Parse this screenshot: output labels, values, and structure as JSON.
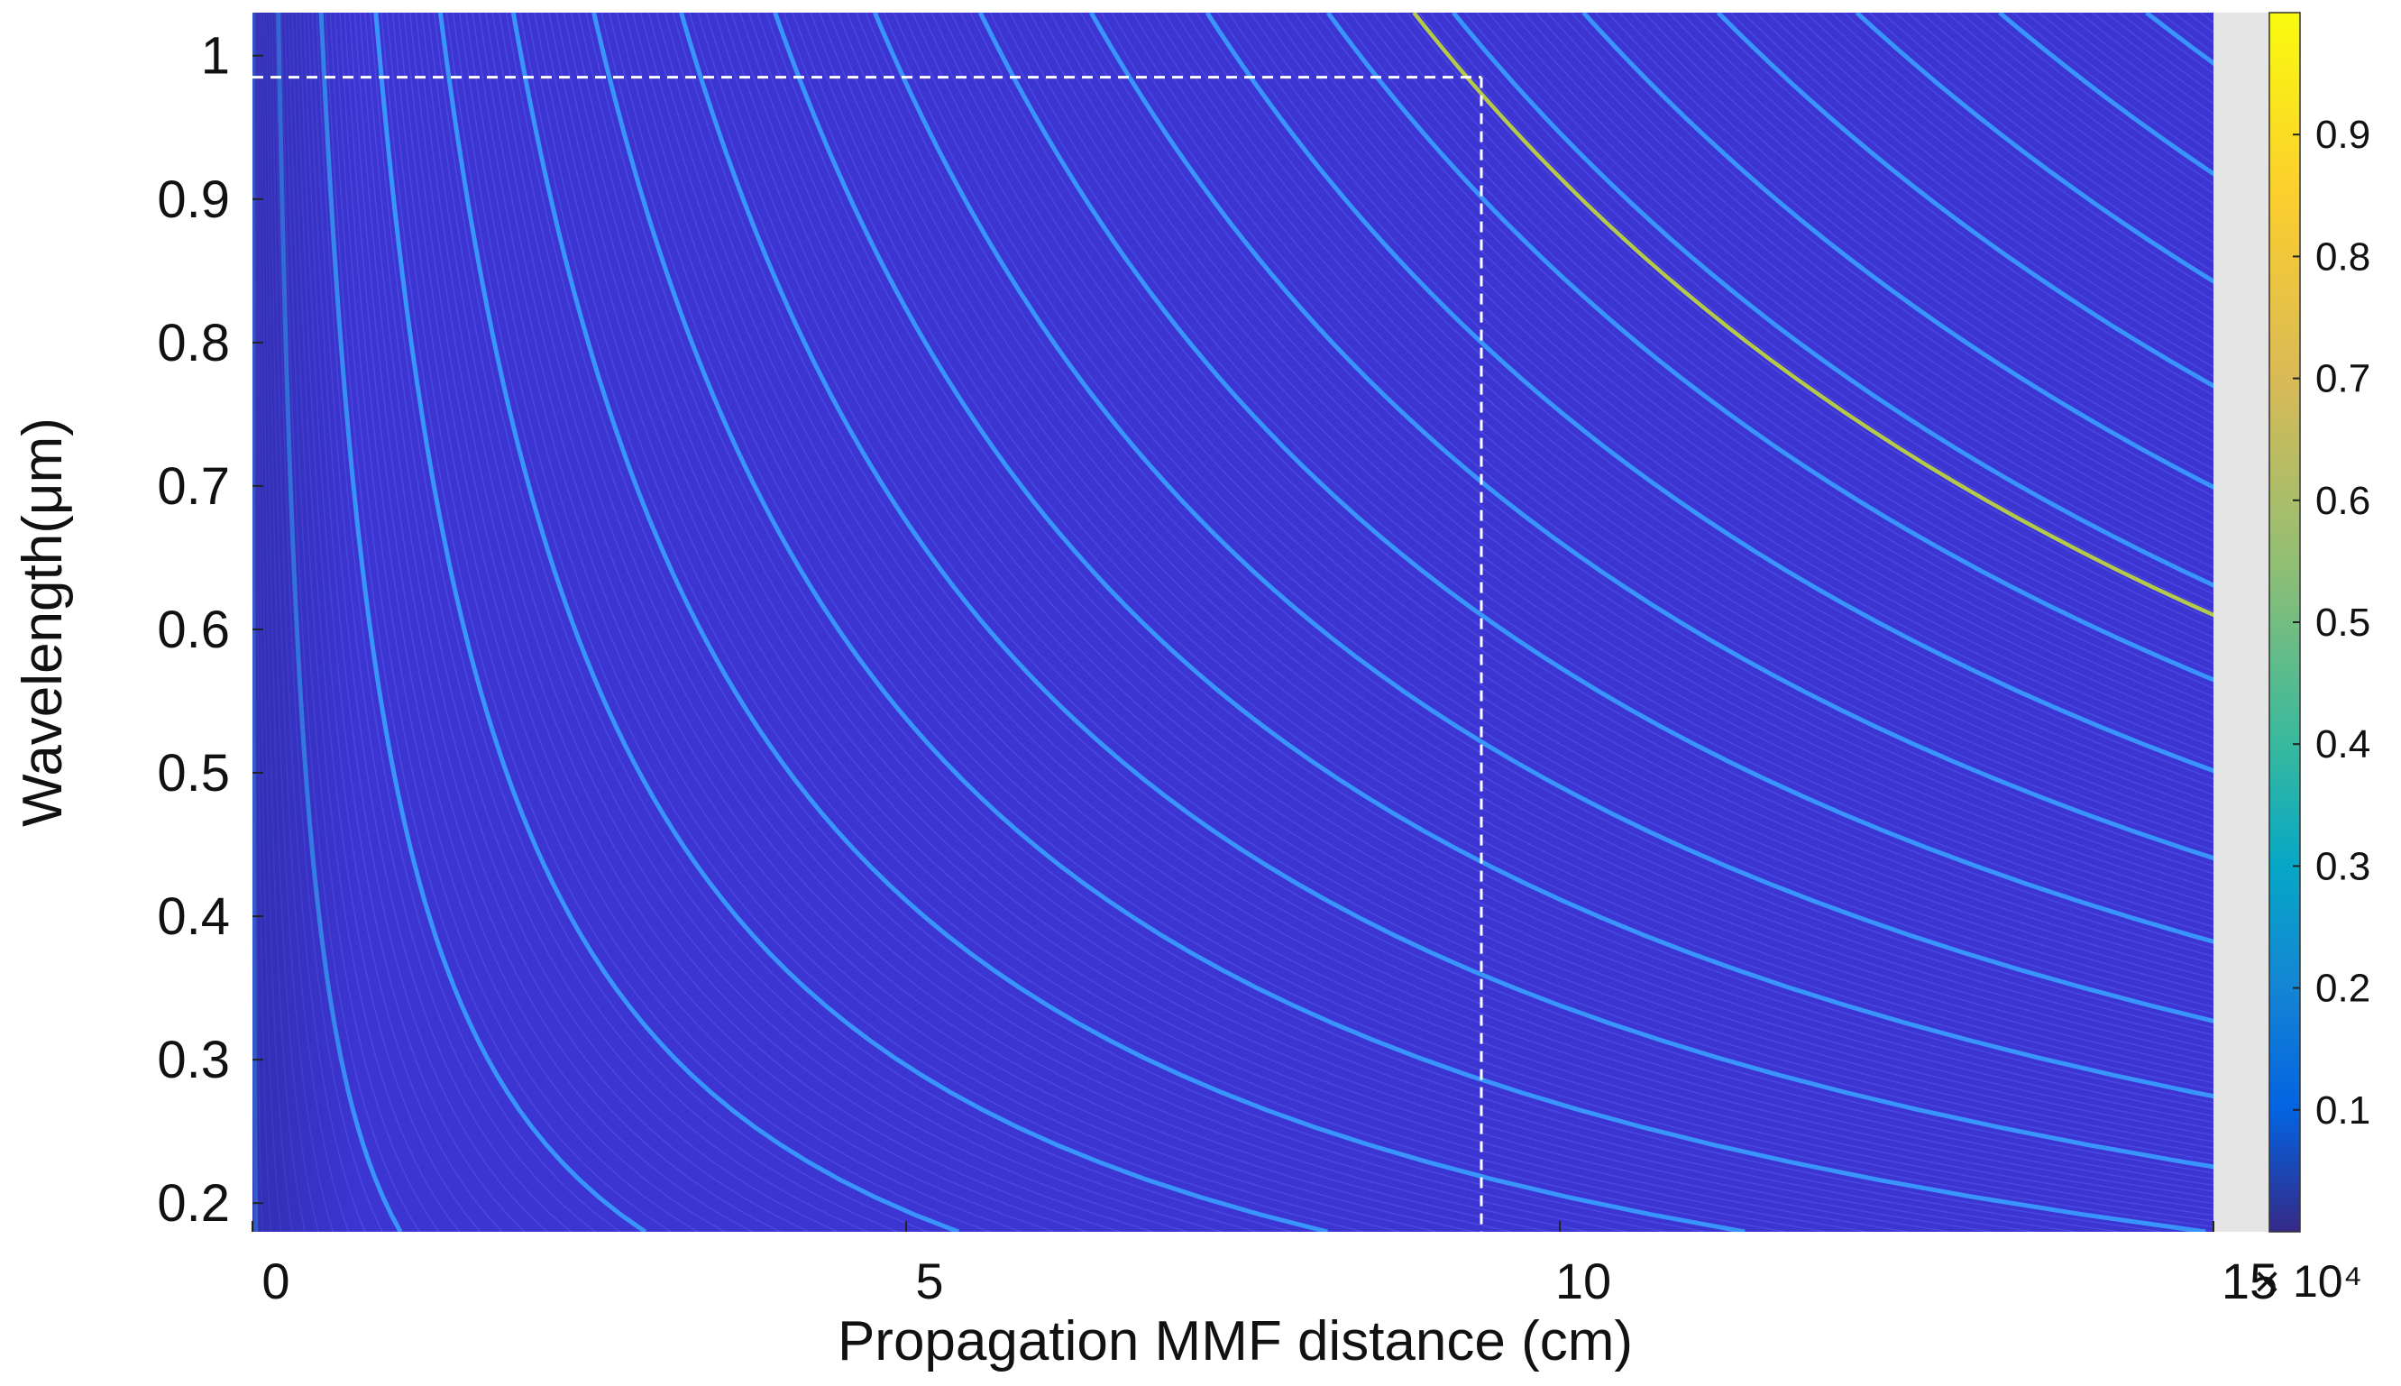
{
  "chart_data": {
    "type": "heatmap",
    "xlabel": "Propagation MMF distance (cm)",
    "ylabel": "Wavelength(μm)",
    "x_scale_label": "× 10⁴",
    "xlim": [
      0,
      15
    ],
    "ylim": [
      0.18,
      1.03
    ],
    "x_ticks": [
      0,
      5,
      10,
      15
    ],
    "x_tick_labels": [
      "0",
      "5",
      "10",
      "15"
    ],
    "y_ticks": [
      0.2,
      0.3,
      0.4,
      0.5,
      0.6,
      0.7,
      0.8,
      0.9,
      1
    ],
    "y_tick_labels": [
      "0.2",
      "0.3",
      "0.4",
      "0.5",
      "0.6",
      "0.7",
      "0.8",
      "0.9",
      "1"
    ],
    "colorbar": {
      "colormap": "parula",
      "range": [
        0,
        1
      ],
      "ticks": [
        0.1,
        0.2,
        0.3,
        0.4,
        0.5,
        0.6,
        0.7,
        0.8,
        0.9
      ],
      "tick_labels": [
        "0.1",
        "0.2",
        "0.3",
        "0.4",
        "0.5",
        "0.6",
        "0.7",
        "0.8",
        "0.9"
      ]
    },
    "colors": {
      "background": "#3c35d2",
      "bright_band": "#39a0ff",
      "peak_band": "#b5c94a",
      "marker_line": "#ffffff"
    },
    "pattern": "curved interference bands of approximately constant x · wavelength, dense near x = 0",
    "reference_lines": {
      "horizontal_y": 0.985,
      "vertical_x": 9.4
    },
    "grid": false
  }
}
